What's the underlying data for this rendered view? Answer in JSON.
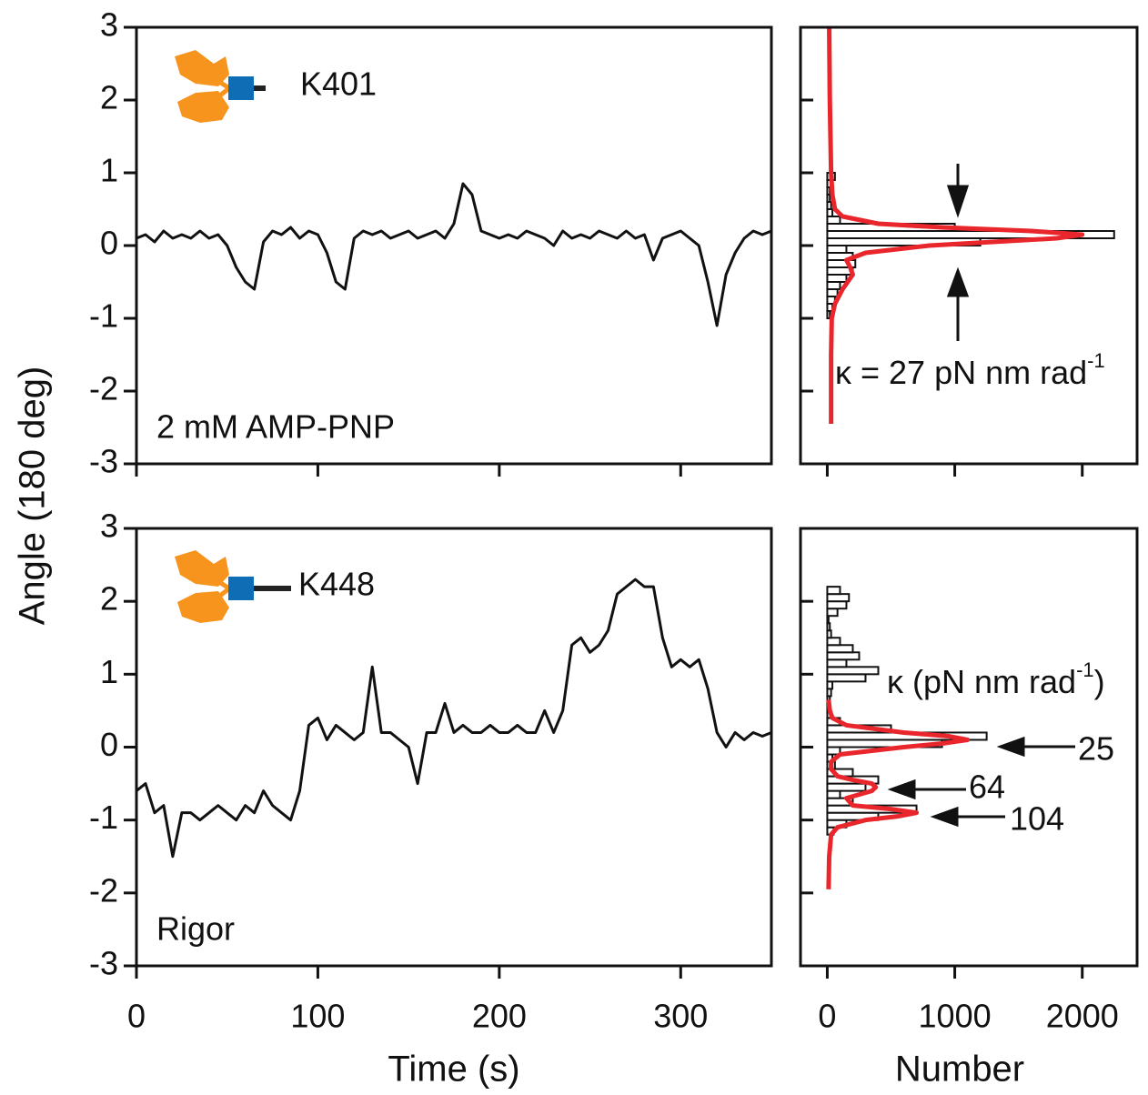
{
  "chart_data": [
    {
      "type": "line",
      "ylabel": "Angle (180 deg)",
      "annotation": "K401",
      "condition": "2 mM AMP-PNP",
      "xlim": [
        0,
        350
      ],
      "xticks": [
        0,
        100,
        200,
        300
      ],
      "xtick_labels": false,
      "ylim": [
        -3,
        3
      ],
      "yticks": [
        3,
        2,
        1,
        0,
        -1,
        -2,
        -3
      ],
      "series": [
        {
          "color": "#111111",
          "x": [
            0,
            5,
            10,
            15,
            20,
            25,
            30,
            35,
            40,
            45,
            50,
            55,
            60,
            65,
            70,
            75,
            80,
            85,
            90,
            95,
            100,
            105,
            110,
            115,
            120,
            125,
            130,
            135,
            140,
            145,
            150,
            155,
            160,
            165,
            170,
            175,
            180,
            185,
            190,
            195,
            200,
            205,
            210,
            215,
            220,
            225,
            230,
            235,
            240,
            245,
            250,
            255,
            260,
            265,
            270,
            275,
            280,
            285,
            290,
            295,
            300,
            305,
            310,
            315,
            320,
            325,
            330,
            335,
            340,
            345,
            350
          ],
          "values": [
            0.1,
            0.15,
            0.05,
            0.2,
            0.1,
            0.15,
            0.1,
            0.2,
            0.1,
            0.15,
            0.0,
            -0.3,
            -0.5,
            -0.6,
            0.05,
            0.2,
            0.15,
            0.25,
            0.1,
            0.2,
            0.15,
            -0.1,
            -0.5,
            -0.6,
            0.1,
            0.2,
            0.15,
            0.2,
            0.1,
            0.15,
            0.2,
            0.1,
            0.15,
            0.2,
            0.1,
            0.3,
            0.85,
            0.7,
            0.2,
            0.15,
            0.1,
            0.15,
            0.1,
            0.2,
            0.15,
            0.1,
            0.0,
            0.2,
            0.1,
            0.15,
            0.1,
            0.2,
            0.15,
            0.1,
            0.2,
            0.1,
            0.15,
            -0.2,
            0.1,
            0.15,
            0.2,
            0.1,
            0.0,
            -0.5,
            -1.1,
            -0.4,
            -0.1,
            0.1,
            0.2,
            0.15,
            0.2
          ]
        }
      ]
    },
    {
      "type": "histogram",
      "kappa_text": "κ = 27 pN nm rad",
      "kappa_sup": "-1",
      "xlim": [
        -210,
        2430
      ],
      "xticks": [
        0,
        1000,
        2000
      ],
      "xtick_labels": false,
      "ylim": [
        -3,
        3
      ],
      "yticks": [
        3,
        2,
        1,
        0,
        -1,
        -2,
        -3
      ],
      "bins": [
        -1.0,
        -0.9,
        -0.8,
        -0.7,
        -0.6,
        -0.5,
        -0.4,
        -0.3,
        -0.2,
        -0.1,
        0.0,
        0.1,
        0.2,
        0.3,
        0.4,
        0.5,
        0.6,
        0.7,
        0.8,
        0.9,
        1.0
      ],
      "counts": [
        20,
        40,
        60,
        80,
        100,
        150,
        200,
        220,
        200,
        150,
        1200,
        2250,
        1000,
        100,
        40,
        30,
        20,
        20,
        30,
        60
      ],
      "fit": {
        "color": "#e8262b",
        "angle": [
          -2.45,
          -1.5,
          -1,
          -0.8,
          -0.6,
          -0.4,
          -0.3,
          -0.2,
          -0.1,
          0,
          0.05,
          0.1,
          0.15,
          0.2,
          0.25,
          0.3,
          0.4,
          0.5,
          0.7,
          1,
          2,
          3
        ],
        "number": [
          30,
          30,
          35,
          60,
          120,
          200,
          180,
          150,
          300,
          800,
          1300,
          1800,
          2000,
          1600,
          900,
          400,
          120,
          60,
          40,
          30,
          20,
          15
        ]
      }
    },
    {
      "type": "line",
      "xlabel": "Time (s)",
      "annotation": "K448",
      "condition": "Rigor",
      "xlim": [
        0,
        350
      ],
      "xticks": [
        0,
        100,
        200,
        300
      ],
      "xtick_labels": true,
      "ylim": [
        -3,
        3
      ],
      "yticks": [
        3,
        2,
        1,
        0,
        -1,
        -2,
        -3
      ],
      "series": [
        {
          "color": "#111111",
          "x": [
            0,
            5,
            10,
            15,
            20,
            25,
            30,
            35,
            40,
            45,
            50,
            55,
            60,
            65,
            70,
            75,
            80,
            85,
            90,
            95,
            100,
            105,
            110,
            115,
            120,
            125,
            130,
            135,
            140,
            145,
            150,
            155,
            160,
            165,
            170,
            175,
            180,
            185,
            190,
            195,
            200,
            205,
            210,
            215,
            220,
            225,
            230,
            235,
            240,
            245,
            250,
            255,
            260,
            265,
            270,
            275,
            280,
            285,
            290,
            295,
            300,
            305,
            310,
            315,
            320,
            325,
            330,
            335,
            340,
            345,
            350
          ],
          "values": [
            -0.6,
            -0.5,
            -0.9,
            -0.8,
            -1.5,
            -0.9,
            -0.9,
            -1.0,
            -0.9,
            -0.8,
            -0.9,
            -1.0,
            -0.8,
            -0.9,
            -0.6,
            -0.8,
            -0.9,
            -1.0,
            -0.6,
            0.3,
            0.4,
            0.1,
            0.3,
            0.2,
            0.1,
            0.2,
            1.1,
            0.2,
            0.2,
            0.1,
            0.0,
            -0.5,
            0.2,
            0.2,
            0.6,
            0.2,
            0.3,
            0.2,
            0.2,
            0.3,
            0.2,
            0.2,
            0.3,
            0.2,
            0.2,
            0.5,
            0.2,
            0.5,
            1.4,
            1.5,
            1.3,
            1.4,
            1.6,
            2.1,
            2.2,
            2.3,
            2.2,
            2.2,
            1.5,
            1.1,
            1.2,
            1.1,
            1.2,
            0.8,
            0.2,
            0.0,
            0.2,
            0.1,
            0.2,
            0.15,
            0.2
          ]
        }
      ]
    },
    {
      "type": "histogram",
      "xlabel": "Number",
      "kappa_text": "κ (pN nm rad",
      "kappa_sup": "-1",
      "kappa_end": ")",
      "peak_labels": [
        "25",
        "64",
        "104"
      ],
      "xlim": [
        -210,
        2430
      ],
      "xticks": [
        0,
        1000,
        2000
      ],
      "xtick_labels": true,
      "ylim": [
        -3,
        3
      ],
      "yticks": [
        3,
        2,
        1,
        0,
        -1,
        -2,
        -3
      ],
      "bins": [
        -1.2,
        -1.1,
        -1.0,
        -0.9,
        -0.8,
        -0.7,
        -0.6,
        -0.5,
        -0.4,
        -0.3,
        -0.2,
        -0.1,
        0.0,
        0.1,
        0.2,
        0.3,
        0.4,
        0.5,
        0.6,
        0.7,
        0.8,
        0.9,
        1.0,
        1.1,
        1.2,
        1.3,
        1.4,
        1.5,
        1.6,
        1.7,
        1.8,
        1.9,
        2.0,
        2.1,
        2.2
      ],
      "counts": [
        50,
        150,
        400,
        700,
        200,
        100,
        300,
        400,
        200,
        60,
        40,
        100,
        900,
        1250,
        500,
        100,
        30,
        20,
        20,
        30,
        40,
        300,
        400,
        150,
        250,
        200,
        100,
        30,
        20,
        10,
        80,
        150,
        170,
        100
      ],
      "fit": {
        "color": "#e8262b",
        "angle": [
          -1.95,
          -1.5,
          -1.2,
          -1.1,
          -1.0,
          -0.95,
          -0.9,
          -0.85,
          -0.8,
          -0.7,
          -0.6,
          -0.55,
          -0.5,
          -0.45,
          -0.4,
          -0.3,
          -0.2,
          -0.1,
          0,
          0.05,
          0.1,
          0.15,
          0.2,
          0.3,
          0.4,
          0.5,
          0.65
        ],
        "number": [
          10,
          15,
          30,
          80,
          300,
          550,
          700,
          500,
          200,
          150,
          350,
          380,
          350,
          200,
          80,
          30,
          30,
          100,
          600,
          900,
          1100,
          950,
          600,
          150,
          40,
          20,
          10
        ]
      }
    }
  ]
}
